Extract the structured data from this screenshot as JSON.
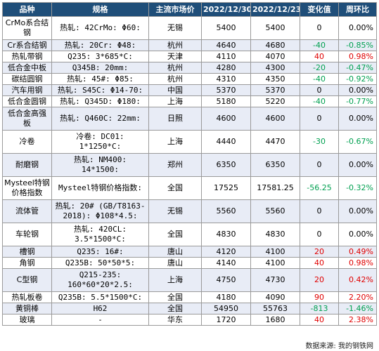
{
  "headers": [
    "品种",
    "规格",
    "主流市场价",
    "2022/12/30",
    "2022/12/23",
    "变化值",
    "周环比"
  ],
  "rows": [
    {
      "name": "CrMo系合结钢",
      "spec": "热轧: 42CrMo: Φ60:",
      "market": "无锡",
      "p1": "5400",
      "p2": "5400",
      "chg": "0",
      "pct": "0.00%",
      "trend": "flat",
      "h": 33
    },
    {
      "name": "Cr系合结钢",
      "spec": "热轧: 20Cr: Φ48:",
      "market": "杭州",
      "p1": "4640",
      "p2": "4680",
      "chg": "-40",
      "pct": "-0.85%",
      "trend": "down",
      "h": 16
    },
    {
      "name": "热轧带钢",
      "spec": "Q235: 3*685*C:",
      "market": "天津",
      "p1": "4110",
      "p2": "4070",
      "chg": "40",
      "pct": "0.98%",
      "trend": "up",
      "h": 16
    },
    {
      "name": "低合金中板",
      "spec": "Q345B: 20mm:",
      "market": "杭州",
      "p1": "4280",
      "p2": "4300",
      "chg": "-20",
      "pct": "-0.47%",
      "trend": "down",
      "h": 16
    },
    {
      "name": "碳结圆钢",
      "spec": "热轧: 45#: Φ85:",
      "market": "杭州",
      "p1": "4310",
      "p2": "4350",
      "chg": "-40",
      "pct": "-0.92%",
      "trend": "down",
      "h": 16
    },
    {
      "name": "汽车用钢",
      "spec": "热轧: S45C: Φ14-70:",
      "market": "中国",
      "p1": "5370",
      "p2": "5370",
      "chg": "0",
      "pct": "0.00%",
      "trend": "flat",
      "h": 16
    },
    {
      "name": "低合金圆钢",
      "spec": "热轧: Q345D: Φ180:",
      "market": "上海",
      "p1": "5180",
      "p2": "5220",
      "chg": "-40",
      "pct": "-0.77%",
      "trend": "down",
      "h": 16
    },
    {
      "name": "低合金高强板",
      "spec": "热轧: Q460C: 22mm:",
      "market": "日照",
      "p1": "4600",
      "p2": "4600",
      "chg": "0",
      "pct": "0.00%",
      "trend": "flat",
      "h": 33
    },
    {
      "name": "冷卷",
      "spec": "冷卷: DC01: 1*1250*C:",
      "market": "上海",
      "p1": "4440",
      "p2": "4470",
      "chg": "-30",
      "pct": "-0.67%",
      "trend": "down",
      "h": 33
    },
    {
      "name": "耐磨钢",
      "spec": "热轧: NM400: 14*1500:",
      "market": "郑州",
      "p1": "6350",
      "p2": "6350",
      "chg": "0",
      "pct": "0.00%",
      "trend": "flat",
      "h": 33
    },
    {
      "name": "Mysteel特钢价格指数",
      "spec": "Mysteel特钢价格指数:",
      "market": "全国",
      "p1": "17525",
      "p2": "17581.25",
      "chg": "-56.25",
      "pct": "-0.32%",
      "trend": "down",
      "h": 33
    },
    {
      "name": "流体管",
      "spec": "热轧: 20# (GB/T8163-2018): Φ108*4.5:",
      "market": "无锡",
      "p1": "5560",
      "p2": "5560",
      "chg": "0",
      "pct": "0.00%",
      "trend": "flat",
      "h": 33
    },
    {
      "name": "车轮钢",
      "spec": "热轧: 420CL: 3.5*1500*C:",
      "market": "全国",
      "p1": "4830",
      "p2": "4830",
      "chg": "0",
      "pct": "0.00%",
      "trend": "flat",
      "h": 33
    },
    {
      "name": "槽钢",
      "spec": "Q235: 16#:",
      "market": "唐山",
      "p1": "4120",
      "p2": "4100",
      "chg": "20",
      "pct": "0.49%",
      "trend": "up",
      "h": 16
    },
    {
      "name": "角钢",
      "spec": "Q235B: 50*50*5:",
      "market": "唐山",
      "p1": "4140",
      "p2": "4100",
      "chg": "40",
      "pct": "0.98%",
      "trend": "up",
      "h": 16
    },
    {
      "name": "C型钢",
      "spec": "Q215-235: 160*60*20*2.5:",
      "market": "上海",
      "p1": "4750",
      "p2": "4730",
      "chg": "20",
      "pct": "0.42%",
      "trend": "up",
      "h": 33
    },
    {
      "name": "热轧板卷",
      "spec": "Q235B: 5.5*1500*C:",
      "market": "全国",
      "p1": "4180",
      "p2": "4090",
      "chg": "90",
      "pct": "2.20%",
      "trend": "up",
      "h": 16
    },
    {
      "name": "黄铜棒",
      "spec": "H62",
      "market": "全国",
      "p1": "54950",
      "p2": "55763",
      "chg": "-813",
      "pct": "-1.46%",
      "trend": "down",
      "h": 16
    },
    {
      "name": "玻璃",
      "spec": "-",
      "market": "华东",
      "p1": "1720",
      "p2": "1680",
      "chg": "40",
      "pct": "2.38%",
      "trend": "up",
      "h": 16
    }
  ],
  "source": "数据来源: 我的钢铁网"
}
